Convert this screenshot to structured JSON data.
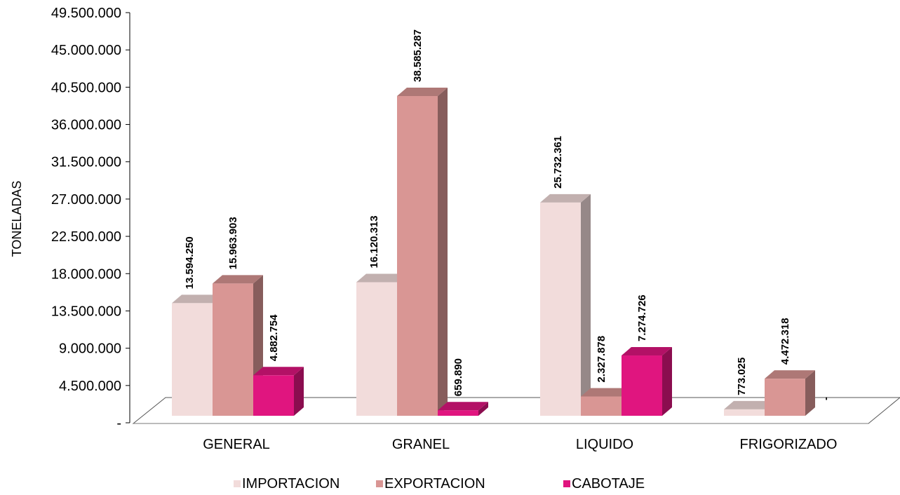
{
  "chart_data": {
    "type": "bar",
    "style": "3d-clustered-column",
    "title": "",
    "xlabel": "",
    "ylabel": "TONELADAS",
    "ylim": [
      0,
      49500000
    ],
    "yticks": [
      "-",
      "4.500.000",
      "9.000.000",
      "13.500.000",
      "18.000.000",
      "22.500.000",
      "27.000.000",
      "31.500.000",
      "36.000.000",
      "40.500.000",
      "45.000.000",
      "49.500.000"
    ],
    "categories": [
      "GENERAL",
      "GRANEL",
      "LIQUIDO",
      "FRIGORIZADO"
    ],
    "series": [
      {
        "name": "IMPORTACION",
        "color": "#f2dcdb",
        "values": [
          13594250,
          16120313,
          25732361,
          773025
        ],
        "labels": [
          "13.594.250",
          "16.120.313",
          "25.732.361",
          "773.025"
        ]
      },
      {
        "name": "EXPORTACION",
        "color": "#d99694",
        "values": [
          15963903,
          38585287,
          2327878,
          4472318
        ],
        "labels": [
          "15.963.903",
          "38.585.287",
          "2.327.878",
          "4.472.318"
        ]
      },
      {
        "name": "CABOTAJE",
        "color": "#e0157f",
        "values": [
          4882754,
          659890,
          7274726,
          0
        ],
        "labels": [
          "4.882.754",
          "659.890",
          "7.274.726",
          "-"
        ]
      }
    ],
    "legend_position": "bottom",
    "grid": false
  }
}
